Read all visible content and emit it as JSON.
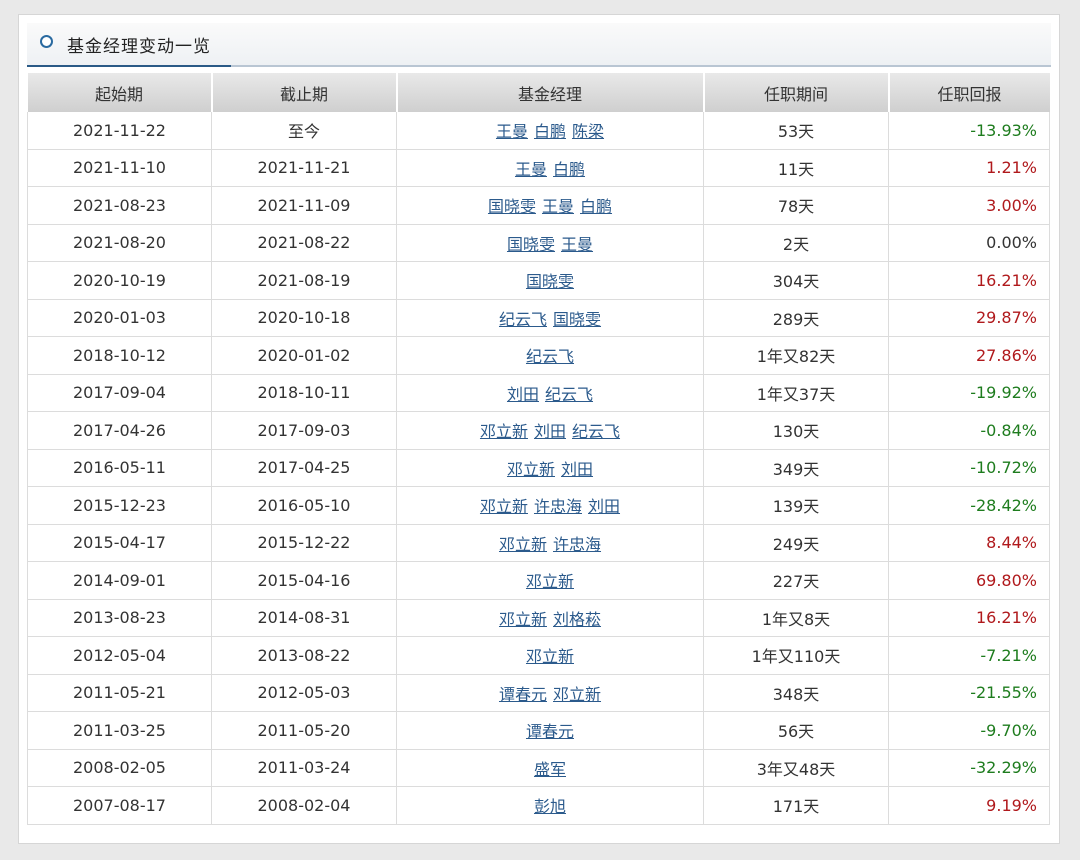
{
  "section": {
    "title": "基金经理变动一览"
  },
  "table": {
    "headers": [
      "起始期",
      "截止期",
      "基金经理",
      "任职期间",
      "任职回报"
    ],
    "rows": [
      {
        "start": "2021-11-22",
        "end": "至今",
        "managers": [
          "王曼",
          "白鹏",
          "陈梁"
        ],
        "duration": "53天",
        "return": "-13.93%",
        "sign": "neg"
      },
      {
        "start": "2021-11-10",
        "end": "2021-11-21",
        "managers": [
          "王曼",
          "白鹏"
        ],
        "duration": "11天",
        "return": "1.21%",
        "sign": "pos"
      },
      {
        "start": "2021-08-23",
        "end": "2021-11-09",
        "managers": [
          "国晓雯",
          "王曼",
          "白鹏"
        ],
        "duration": "78天",
        "return": "3.00%",
        "sign": "pos"
      },
      {
        "start": "2021-08-20",
        "end": "2021-08-22",
        "managers": [
          "国晓雯",
          "王曼"
        ],
        "duration": "2天",
        "return": "0.00%",
        "sign": "zero"
      },
      {
        "start": "2020-10-19",
        "end": "2021-08-19",
        "managers": [
          "国晓雯"
        ],
        "duration": "304天",
        "return": "16.21%",
        "sign": "pos"
      },
      {
        "start": "2020-01-03",
        "end": "2020-10-18",
        "managers": [
          "纪云飞",
          "国晓雯"
        ],
        "duration": "289天",
        "return": "29.87%",
        "sign": "pos"
      },
      {
        "start": "2018-10-12",
        "end": "2020-01-02",
        "managers": [
          "纪云飞"
        ],
        "duration": "1年又82天",
        "return": "27.86%",
        "sign": "pos"
      },
      {
        "start": "2017-09-04",
        "end": "2018-10-11",
        "managers": [
          "刘田",
          "纪云飞"
        ],
        "duration": "1年又37天",
        "return": "-19.92%",
        "sign": "neg"
      },
      {
        "start": "2017-04-26",
        "end": "2017-09-03",
        "managers": [
          "邓立新",
          "刘田",
          "纪云飞"
        ],
        "duration": "130天",
        "return": "-0.84%",
        "sign": "neg"
      },
      {
        "start": "2016-05-11",
        "end": "2017-04-25",
        "managers": [
          "邓立新",
          "刘田"
        ],
        "duration": "349天",
        "return": "-10.72%",
        "sign": "neg"
      },
      {
        "start": "2015-12-23",
        "end": "2016-05-10",
        "managers": [
          "邓立新",
          "许忠海",
          "刘田"
        ],
        "duration": "139天",
        "return": "-28.42%",
        "sign": "neg"
      },
      {
        "start": "2015-04-17",
        "end": "2015-12-22",
        "managers": [
          "邓立新",
          "许忠海"
        ],
        "duration": "249天",
        "return": "8.44%",
        "sign": "pos"
      },
      {
        "start": "2014-09-01",
        "end": "2015-04-16",
        "managers": [
          "邓立新"
        ],
        "duration": "227天",
        "return": "69.80%",
        "sign": "pos"
      },
      {
        "start": "2013-08-23",
        "end": "2014-08-31",
        "managers": [
          "邓立新",
          "刘格菘"
        ],
        "duration": "1年又8天",
        "return": "16.21%",
        "sign": "pos"
      },
      {
        "start": "2012-05-04",
        "end": "2013-08-22",
        "managers": [
          "邓立新"
        ],
        "duration": "1年又110天",
        "return": "-7.21%",
        "sign": "neg"
      },
      {
        "start": "2011-05-21",
        "end": "2012-05-03",
        "managers": [
          "谭春元",
          "邓立新"
        ],
        "duration": "348天",
        "return": "-21.55%",
        "sign": "neg"
      },
      {
        "start": "2011-03-25",
        "end": "2011-05-20",
        "managers": [
          "谭春元"
        ],
        "duration": "56天",
        "return": "-9.70%",
        "sign": "neg"
      },
      {
        "start": "2008-02-05",
        "end": "2011-03-24",
        "managers": [
          "盛军"
        ],
        "duration": "3年又48天",
        "return": "-32.29%",
        "sign": "neg"
      },
      {
        "start": "2007-08-17",
        "end": "2008-02-04",
        "managers": [
          "彭旭"
        ],
        "duration": "171天",
        "return": "9.19%",
        "sign": "pos"
      }
    ]
  },
  "colors": {
    "positive": "#b0191c",
    "negative": "#1e7c1e",
    "link": "#2b5a8c",
    "accent": "#2a5a86"
  },
  "icons": {
    "section_marker": "circle-icon"
  }
}
